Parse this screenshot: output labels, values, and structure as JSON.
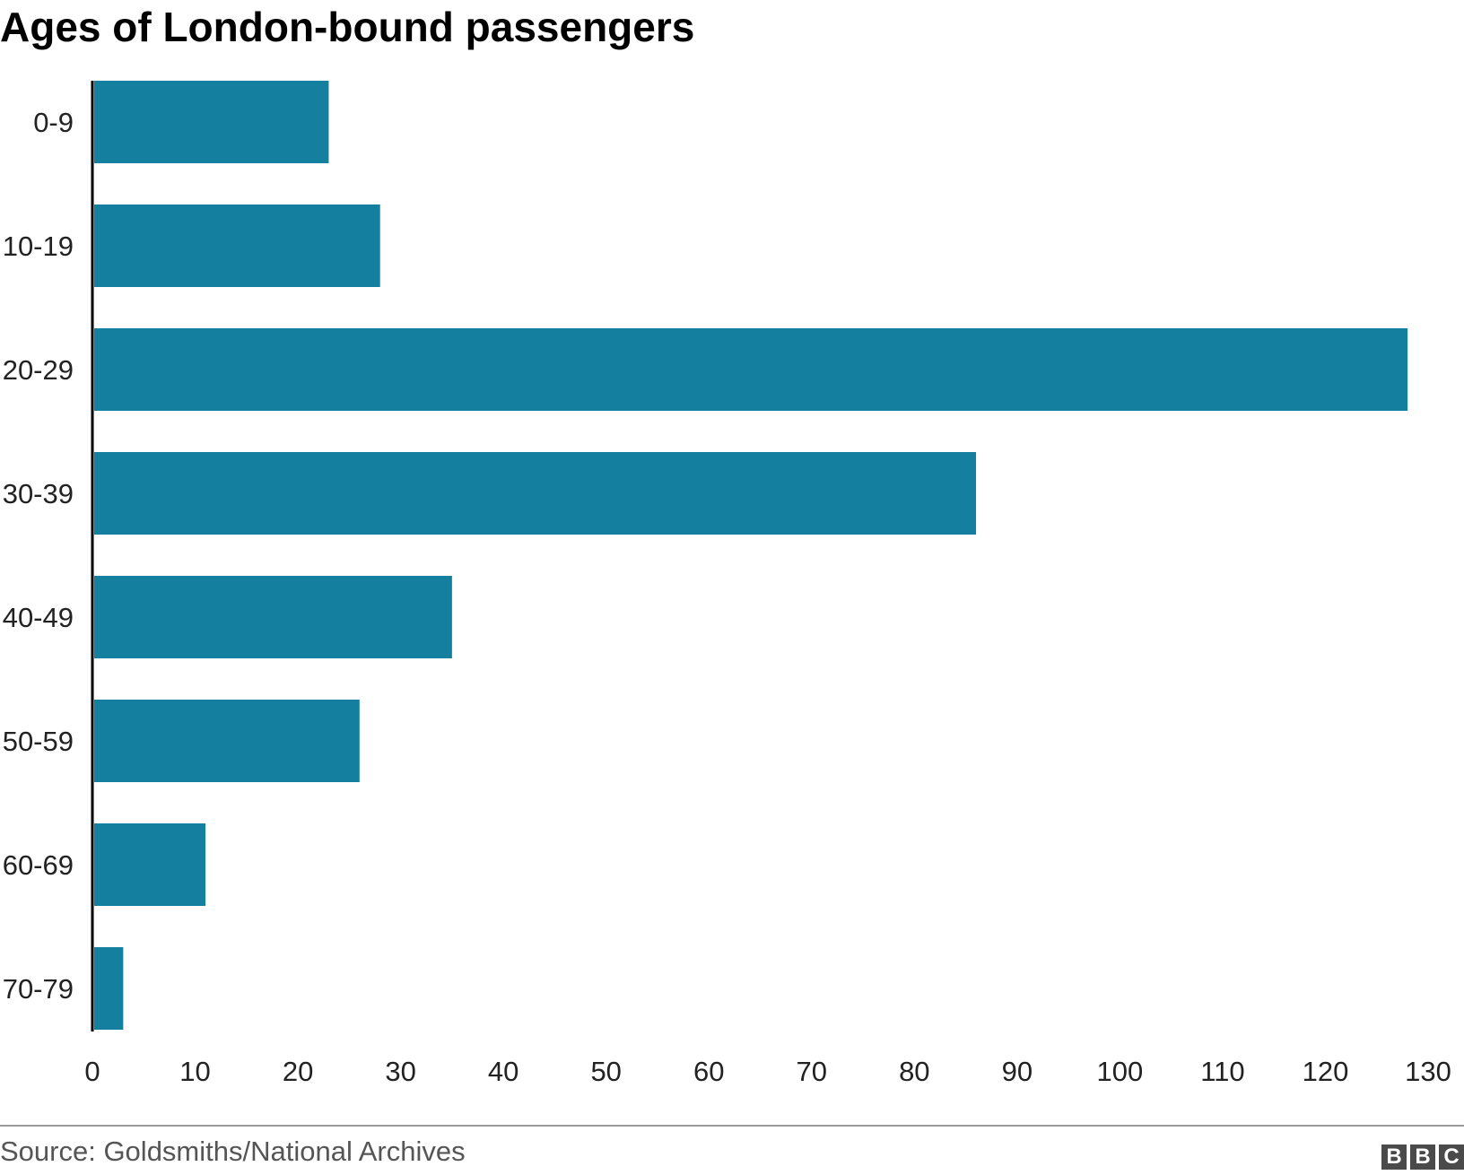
{
  "chart_data": {
    "type": "bar",
    "orientation": "horizontal",
    "title": "Ages of London-bound passengers",
    "categories": [
      "0-9",
      "10-19",
      "20-29",
      "30-39",
      "40-49",
      "50-59",
      "60-69",
      "70-79"
    ],
    "values": [
      23,
      28,
      128,
      86,
      35,
      26,
      11,
      3
    ],
    "xlim": [
      0,
      130
    ],
    "xticks": [
      0,
      10,
      20,
      30,
      40,
      50,
      60,
      70,
      80,
      90,
      100,
      110,
      120,
      130
    ],
    "xlabel": "",
    "ylabel": "",
    "grid": false,
    "bar_color": "#157fa0"
  },
  "source": "Source: Goldsmiths/National Archives",
  "logo": {
    "letters": [
      "B",
      "B",
      "C"
    ]
  }
}
